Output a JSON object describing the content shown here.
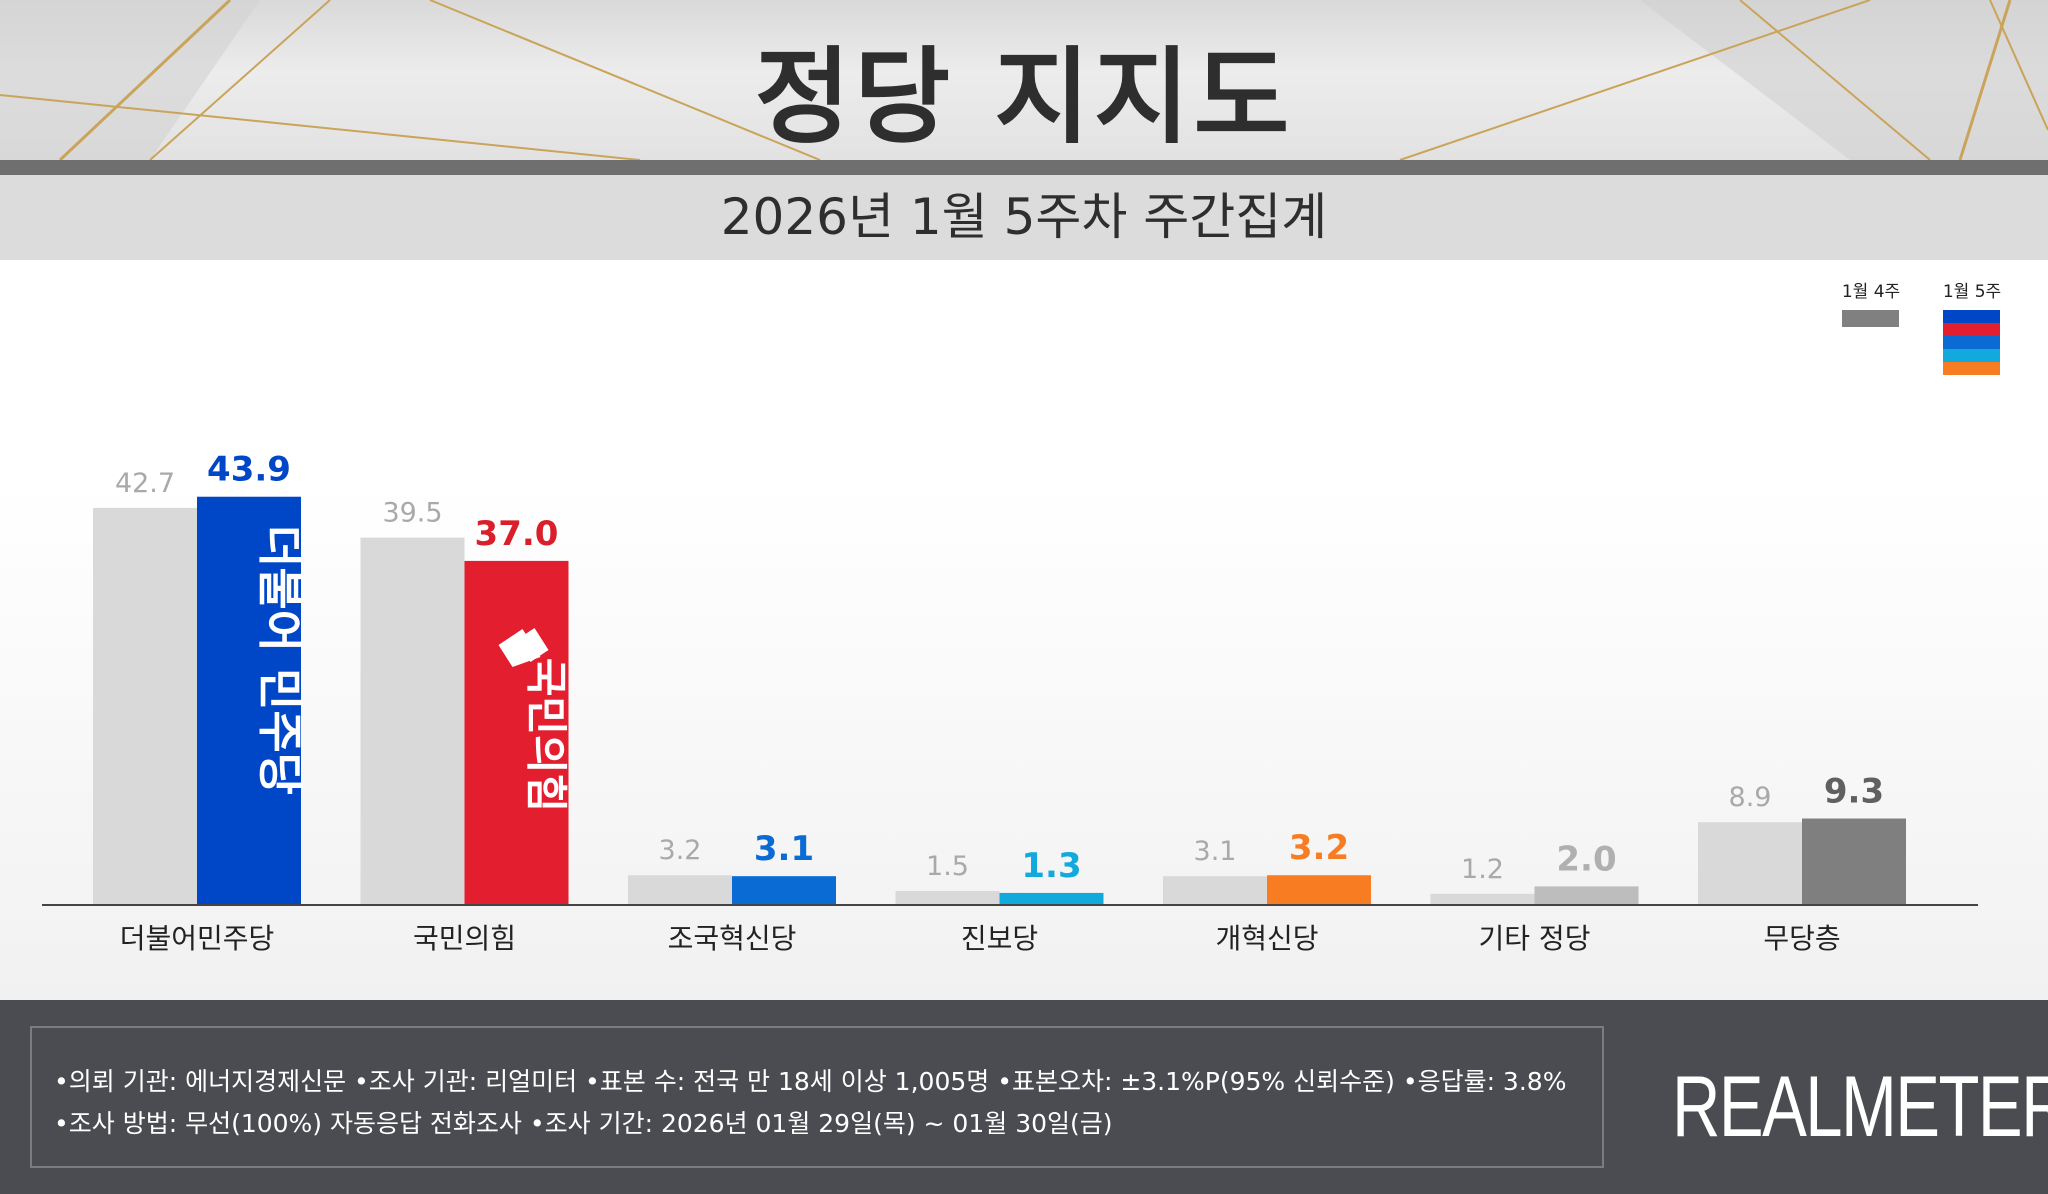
{
  "header": {
    "title": "정당 지지도",
    "subtitle": "2026년 1월 5주차 주간집계"
  },
  "legend": {
    "prev_label": "1월 4주",
    "curr_label": "1월 5주",
    "curr_swatch_colors": [
      "#0047c8",
      "#e31e2e",
      "#0a6bd4",
      "#12a9dc",
      "#f77c22"
    ],
    "prev_swatch_color": "#808080"
  },
  "chart_data": {
    "type": "bar",
    "categories": [
      "더불어민주당",
      "국민의힘",
      "조국혁신당",
      "진보당",
      "개혁신당",
      "기타 정당",
      "무당층"
    ],
    "series": [
      {
        "name": "1월 4주",
        "values": [
          42.7,
          39.5,
          3.2,
          1.5,
          3.1,
          1.2,
          8.9
        ]
      },
      {
        "name": "1월 5주",
        "values": [
          43.9,
          37.0,
          3.1,
          1.3,
          3.2,
          2.0,
          9.3
        ]
      }
    ],
    "prev_labels": [
      "42.7",
      "39.5",
      "3.2",
      "1.5",
      "3.1",
      "1.2",
      "8.9"
    ],
    "curr_labels": [
      "43.9",
      "37.0",
      "3.1",
      "1.3",
      "3.2",
      "2.0",
      "9.3"
    ],
    "curr_colors": [
      "#0047c8",
      "#e31e2e",
      "#0a6bd4",
      "#12a9dc",
      "#f77c22",
      "#bdbdbd",
      "#7f7f7f"
    ],
    "curr_label_colors": [
      "#0047c8",
      "#d81f2a",
      "#0a6bd4",
      "#12a9dc",
      "#f77c22",
      "#b0b0b0",
      "#606060"
    ],
    "prev_color": "#d9d9d9",
    "bar_logos": [
      "더불어 민주당",
      "국민의힘"
    ],
    "ylim": [
      0,
      45
    ]
  },
  "footer": {
    "note_line1": "•의뢰 기관: 에너지경제신문  •조사 기관: 리얼미터 •표본 수: 전국 만 18세 이상 1,005명 •표본오차: ±3.1%P(95% 신뢰수준) •응답률: 3.8%",
    "note_line2": "•조사 방법: 무선(100%) 자동응답 전화조사 •조사 기간: 2026년 01월 29일(목) ~ 01월 30일(금)",
    "brand": "REALMETER"
  }
}
